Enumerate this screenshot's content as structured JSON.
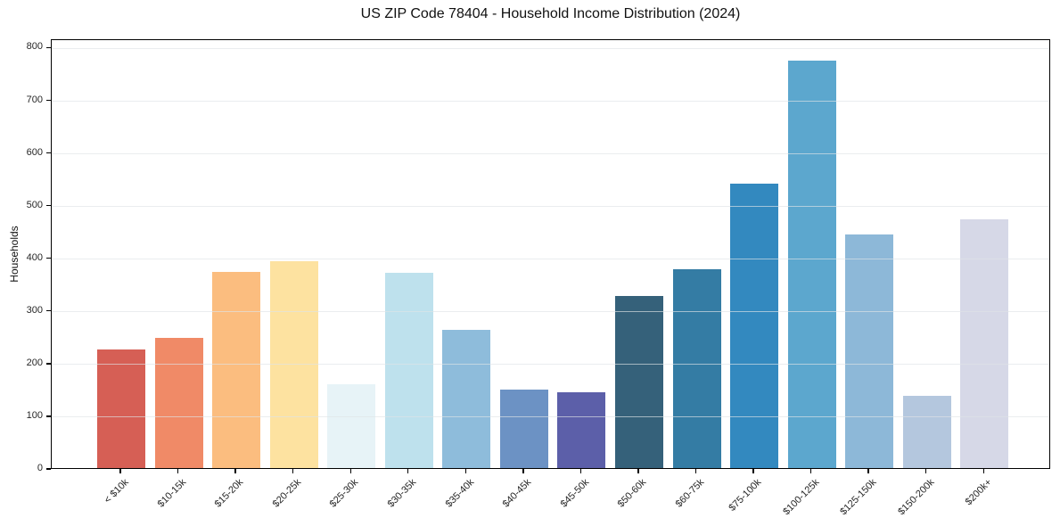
{
  "title": "US ZIP Code 78404 - Household Income Distribution (2024)",
  "chart_data": {
    "type": "bar",
    "title": "US ZIP Code 78404 - Household Income Distribution (2024)",
    "xlabel": "",
    "ylabel": "Households",
    "ylim": [
      0,
      816
    ],
    "yticks": [
      0,
      100,
      200,
      300,
      400,
      500,
      600,
      700,
      800
    ],
    "grid": true,
    "legend": "none",
    "categories": [
      "< $10k",
      "$10-15k",
      "$15-20k",
      "$20-25k",
      "$25-30k",
      "$30-35k",
      "$35-40k",
      "$40-45k",
      "$45-50k",
      "$50-60k",
      "$60-75k",
      "$75-100k",
      "$100-125k",
      "$125-150k",
      "$150-200k",
      "$200k+"
    ],
    "values": [
      226,
      247,
      372,
      392,
      159,
      371,
      263,
      149,
      144,
      327,
      377,
      540,
      774,
      444,
      137,
      472
    ],
    "bar_colors": [
      "#d65f55",
      "#f08a67",
      "#fbbd7f",
      "#fde2a0",
      "#e7f3f7",
      "#bee1ed",
      "#8ebcdb",
      "#6c92c4",
      "#5c5fa9",
      "#35617a",
      "#347ca4",
      "#3389bf",
      "#5ca7ce",
      "#8db8d8",
      "#b4c7de",
      "#d6d8e7"
    ],
    "spine_color": "#000000",
    "grid_color": "#e7e7e7",
    "background_color": "#ffffff"
  }
}
